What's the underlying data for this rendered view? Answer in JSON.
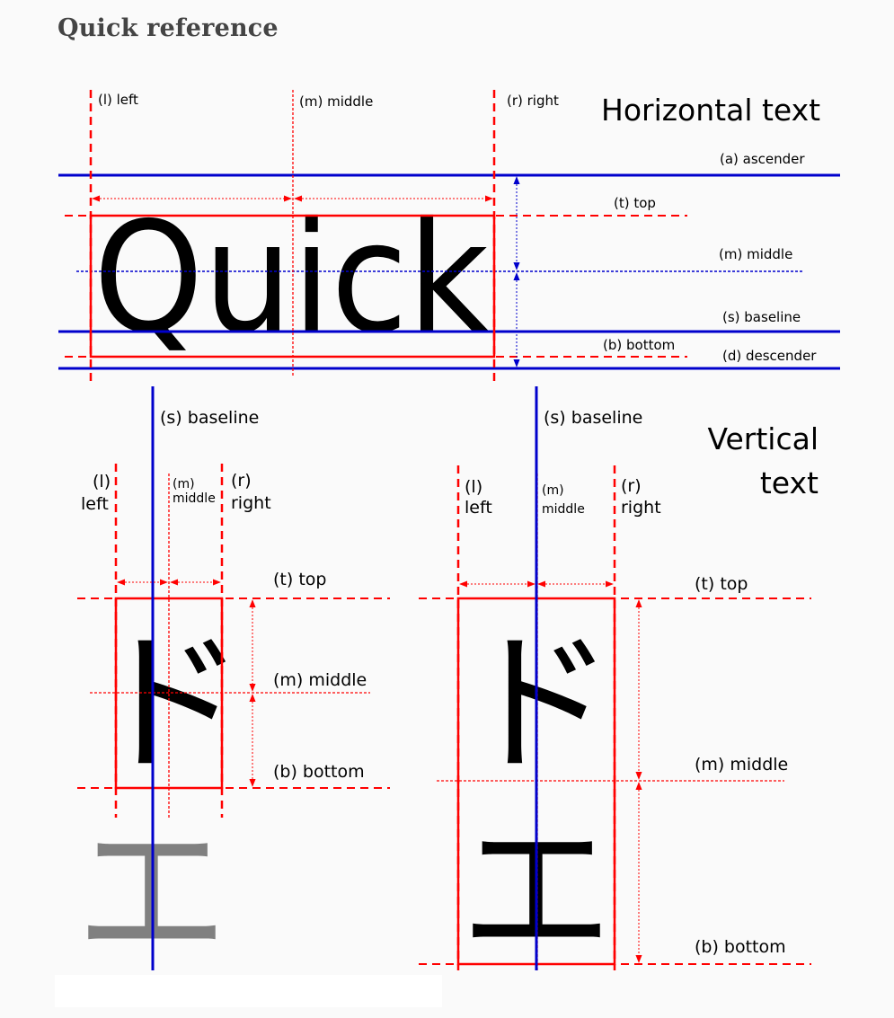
{
  "heading": "Quick reference",
  "horizontal": {
    "title": "Horizontal text",
    "sample": "Quick",
    "labels": {
      "left": "(l) left",
      "middle_v": "(m) middle",
      "right": "(r) right",
      "ascender": "(a) ascender",
      "top": "(t) top",
      "middle_h": "(m) middle",
      "baseline": "(s) baseline",
      "bottom": "(b) bottom",
      "descender": "(d) descender"
    }
  },
  "vertical": {
    "title_line1": "Vertical",
    "title_line2": "text",
    "left_diagram": {
      "baseline": "(s) baseline",
      "l_code": "(l)",
      "l_word": "left",
      "m_code": "(m)",
      "m_word": "middle",
      "r_code": "(r)",
      "r_word": "right",
      "top": "(t) top",
      "middle": "(m) middle",
      "bottom": "(b) bottom",
      "glyph_dark": "ド",
      "glyph_gray": "エ"
    },
    "right_diagram": {
      "baseline": "(s) baseline",
      "l_code": "(l)",
      "l_word": "left",
      "m_code": "(m)",
      "m_word": "middle",
      "r_code": "(r)",
      "r_word": "right",
      "top": "(t) top",
      "middle": "(m) middle",
      "bottom": "(b) bottom",
      "glyph_top": "ド",
      "glyph_bottom": "エ"
    }
  },
  "colors": {
    "guide_red": "#ff0000",
    "baseline_blue": "#0000cc",
    "glyph": "#000000",
    "glyph_gray": "#808080",
    "heading": "#444444"
  }
}
